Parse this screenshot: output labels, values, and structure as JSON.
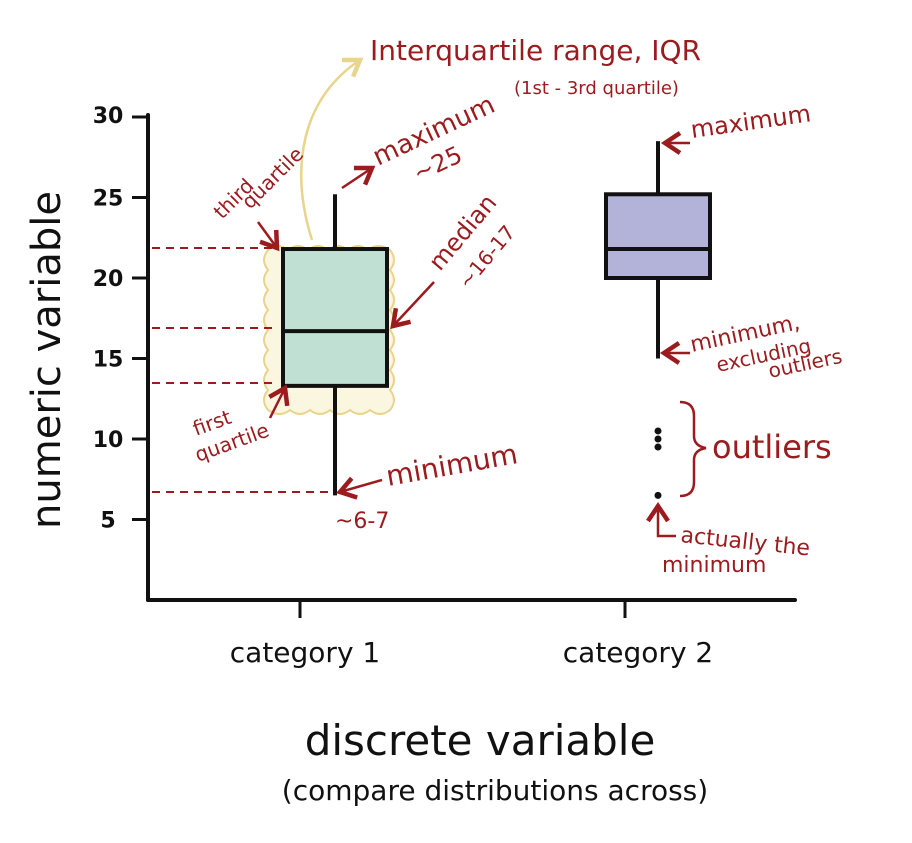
{
  "colors": {
    "axis": "#111111",
    "annotation": "#9b1b1e",
    "iqr_highlight": "#f1e3a6",
    "category_1_fill": "#bfe0d2",
    "category_2_fill": "#b3b3da"
  },
  "chart_data": {
    "type": "boxplot",
    "ylabel": "numeric variable",
    "xlabel": "discrete variable",
    "xlabel_sub": "(compare distributions across)",
    "ylim": [
      0,
      30
    ],
    "y_ticks": [
      5,
      10,
      15,
      20,
      25
    ],
    "y_top_label": "30",
    "categories": [
      "category 1",
      "category 2"
    ],
    "boxes": [
      {
        "category": "category 1",
        "whisker_low": 6.5,
        "q1": 13.3,
        "median": 16.7,
        "q3": 21.8,
        "whisker_high": 25.2,
        "outliers": []
      },
      {
        "category": "category 2",
        "whisker_low": 15.0,
        "q1": 20.0,
        "median": 21.8,
        "q3": 25.2,
        "whisker_high": 28.5,
        "outliers": [
          6.5,
          9.5,
          10.0,
          10.5
        ]
      }
    ]
  },
  "annotations": {
    "iqr_title": "Interquartile range, IQR",
    "iqr_sub": "(1st - 3rd quartile)",
    "max1_line1": "maximum",
    "max1_line2": "~25",
    "third_q_line1": "third",
    "third_q_line2": "quartile",
    "median_line1": "median",
    "median_line2": "~16-17",
    "first_q_line1": "first",
    "first_q_line2": "quartile",
    "min1_line1": "minimum",
    "min1_line2": "~6-7",
    "max2": "maximum",
    "min2_line1": "minimum,",
    "min2_line2": "excluding",
    "min2_line3": "outliers",
    "outliers": "outliers",
    "actual_min_line1": "actually the",
    "actual_min_line2": "minimum"
  }
}
